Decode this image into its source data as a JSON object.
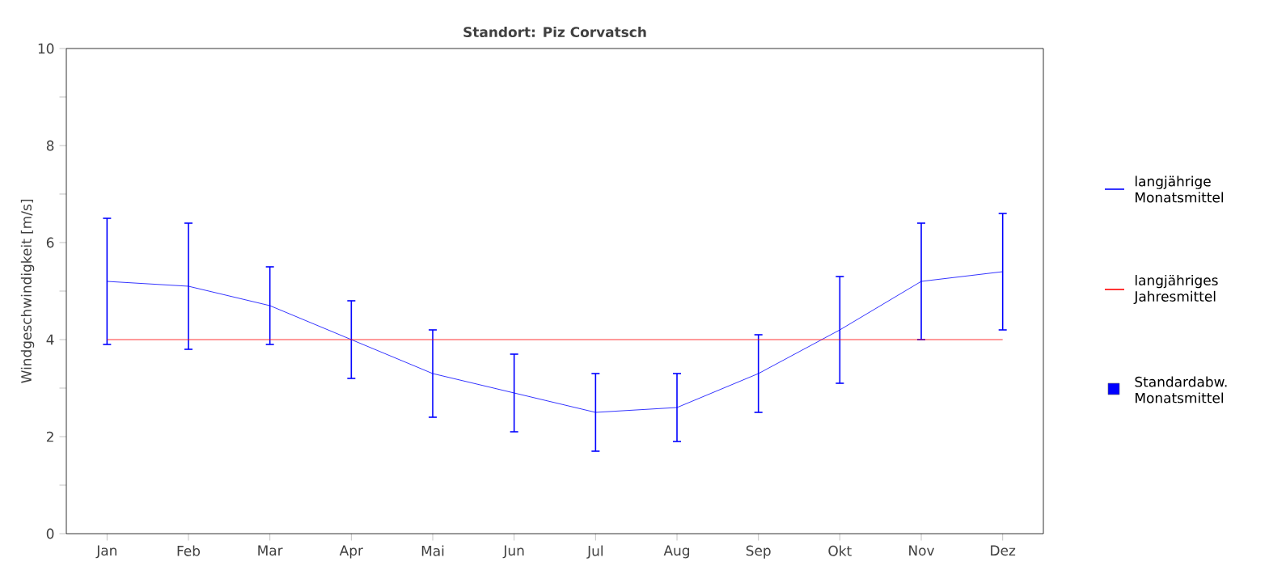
{
  "chart_data": {
    "type": "line",
    "title": "Standort: Piz Corvatsch",
    "ylabel": "Windgeschwindigkeit [m/s]",
    "categories": [
      "Jan",
      "Feb",
      "Mar",
      "Apr",
      "Mai",
      "Jun",
      "Jul",
      "Aug",
      "Sep",
      "Okt",
      "Nov",
      "Dez"
    ],
    "series": [
      {
        "name": "langjährige Monatsmittel",
        "color": "#0000ff",
        "values": [
          5.2,
          5.1,
          4.7,
          4.0,
          3.3,
          2.9,
          2.5,
          2.6,
          3.3,
          4.2,
          5.2,
          5.4
        ],
        "errors": [
          1.3,
          1.3,
          0.8,
          0.8,
          0.9,
          0.8,
          0.8,
          0.7,
          0.8,
          1.1,
          1.2,
          1.2
        ]
      }
    ],
    "ref_lines": [
      {
        "axis": "y",
        "value": 4.0,
        "label": "langjähriges Jahresmittel",
        "color": "#ff0000"
      }
    ],
    "annotations": [
      "Standardabw. Monatsmittel"
    ],
    "ylim": [
      0,
      10
    ],
    "yticks": [
      0,
      {
        "value": 1,
        "label": null
      },
      2,
      {
        "value": 3,
        "label": null
      },
      4,
      {
        "value": 5,
        "label": null
      },
      6,
      {
        "value": 7,
        "label": null
      },
      8,
      {
        "value": 9,
        "label": null
      },
      10
    ],
    "grid": false,
    "legend": "right",
    "marker": "none",
    "line_style": "solid"
  }
}
